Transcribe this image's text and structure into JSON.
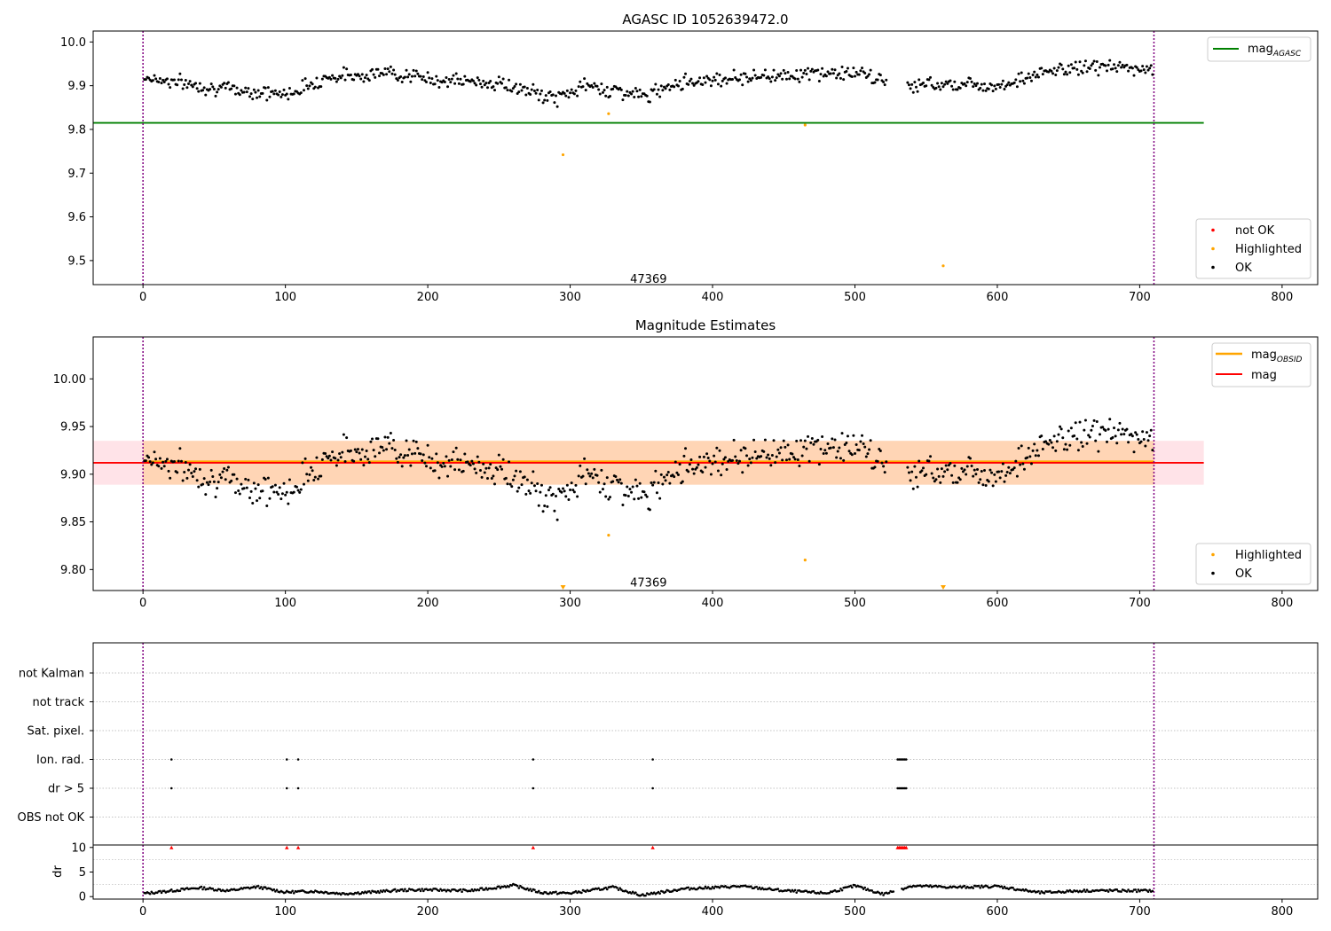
{
  "chart_data": [
    {
      "type": "scatter",
      "title": "AGASC ID 1052639472.0",
      "xlim": [
        -35,
        825
      ],
      "ylim": [
        9.445,
        10.025
      ],
      "xticks": [
        0,
        100,
        200,
        300,
        400,
        500,
        600,
        700,
        800
      ],
      "yticks": [
        9.5,
        9.6,
        9.7,
        9.8,
        9.9,
        10.0
      ],
      "ytick_labels": [
        "9.5",
        "9.6",
        "9.7",
        "9.8",
        "9.9",
        "10.0"
      ],
      "hlines": [
        {
          "name": "mag_AGASC",
          "y": 9.815,
          "x": [
            -35,
            745
          ],
          "color": "#008000"
        }
      ],
      "vlines": [
        0,
        710
      ],
      "annotation": {
        "text": "47369",
        "x": 355,
        "y": 9.455
      },
      "highlighted": [
        [
          295,
          9.742
        ],
        [
          327,
          9.836
        ],
        [
          465,
          9.81
        ],
        [
          562,
          9.488
        ]
      ],
      "ok_series": {
        "x_start": 1,
        "x_end": 709,
        "step": 1,
        "trend_knots": [
          [
            0,
            9.92
          ],
          [
            50,
            9.895
          ],
          [
            100,
            9.88
          ],
          [
            130,
            9.92
          ],
          [
            175,
            9.93
          ],
          [
            200,
            9.915
          ],
          [
            250,
            9.905
          ],
          [
            290,
            9.87
          ],
          [
            310,
            9.9
          ],
          [
            330,
            9.89
          ],
          [
            355,
            9.875
          ],
          [
            370,
            9.905
          ],
          [
            400,
            9.915
          ],
          [
            450,
            9.925
          ],
          [
            500,
            9.93
          ],
          [
            530,
            9.9
          ],
          [
            570,
            9.905
          ],
          [
            600,
            9.9
          ],
          [
            640,
            9.935
          ],
          [
            670,
            9.945
          ],
          [
            709,
            9.935
          ]
        ],
        "scatter": 0.015,
        "seed": 7
      },
      "legend": {
        "placement": "bottom-right",
        "entries": [
          {
            "label": "not OK",
            "color": "#ff0000"
          },
          {
            "label": "Highlighted",
            "color": "#ffa500"
          },
          {
            "label": "OK",
            "color": "#000000"
          }
        ]
      },
      "legend_top": {
        "placement": "top-right",
        "entries": [
          {
            "label": "mag",
            "sub": "AGASC",
            "color": "#008000"
          }
        ]
      }
    },
    {
      "type": "scatter",
      "title": "Magnitude Estimates",
      "xlim": [
        -35,
        825
      ],
      "ylim": [
        9.778,
        10.044
      ],
      "xticks": [
        0,
        100,
        200,
        300,
        400,
        500,
        600,
        700,
        800
      ],
      "yticks": [
        9.8,
        9.85,
        9.9,
        9.95,
        10.0
      ],
      "ytick_labels": [
        "9.80",
        "9.85",
        "9.90",
        "9.95",
        "10.00"
      ],
      "hlines": [
        {
          "name": "mag_OBSID",
          "y": 9.913,
          "x": [
            0,
            710
          ],
          "color": "#ffa500"
        },
        {
          "name": "mag",
          "y": 9.912,
          "x": [
            -35,
            745
          ],
          "color": "#ff0000"
        }
      ],
      "bands": [
        {
          "y": [
            9.889,
            9.935
          ],
          "x": [
            -35,
            745
          ],
          "color": "#ffc0cb",
          "opacity": 0.45
        },
        {
          "y": [
            9.889,
            9.935
          ],
          "x": [
            0,
            710
          ],
          "color": "#ffa500",
          "opacity": 0.22
        }
      ],
      "vlines": [
        0,
        710
      ],
      "annotation": {
        "text": "47369",
        "x": 355,
        "y": 9.785
      },
      "highlighted": [
        [
          327,
          9.836
        ],
        [
          465,
          9.81
        ]
      ],
      "highlighted_offscale": [
        295,
        562
      ],
      "ok_series_ref": 0,
      "legend": {
        "placement": "bottom-right",
        "entries": [
          {
            "label": "Highlighted",
            "color": "#ffa500"
          },
          {
            "label": "OK",
            "color": "#000000"
          }
        ]
      },
      "legend_top": {
        "placement": "top-right",
        "entries": [
          {
            "label": "mag",
            "sub": "OBSID",
            "color": "#ffa500"
          },
          {
            "label": "mag",
            "sub": "",
            "color": "#ff0000"
          }
        ]
      }
    },
    {
      "type": "scatter",
      "title": "",
      "xlim": [
        -35,
        825
      ],
      "categories": [
        "not Kalman",
        "not track",
        "Sat. pixel.",
        "Ion. rad.",
        "dr > 5",
        "OBS not OK"
      ],
      "flags": {
        "Ion. rad.": [
          20,
          101,
          109,
          274,
          358,
          530,
          531,
          532,
          533,
          534,
          535,
          536
        ],
        "dr > 5": [
          20,
          101,
          109,
          274,
          358,
          530,
          531,
          532,
          533,
          534,
          535,
          536
        ]
      },
      "vlines": [
        0,
        710
      ]
    },
    {
      "type": "line",
      "ylabel": "dr",
      "xlim": [
        -35,
        825
      ],
      "ylim": [
        -0.5,
        10.5
      ],
      "xticks": [
        0,
        100,
        200,
        300,
        400,
        500,
        600,
        700,
        800
      ],
      "yticks": [
        0,
        5,
        10
      ],
      "ytick_labels": [
        "0",
        "5",
        "10"
      ],
      "flag_markers_y": 10,
      "flag_markers_x": [
        20,
        101,
        109,
        274,
        358,
        530,
        531,
        532,
        533,
        534,
        535,
        536
      ],
      "dr_knots": [
        [
          0,
          0.6
        ],
        [
          20,
          1.2
        ],
        [
          40,
          1.8
        ],
        [
          60,
          1.2
        ],
        [
          80,
          2.0
        ],
        [
          100,
          0.9
        ],
        [
          120,
          1.1
        ],
        [
          140,
          0.6
        ],
        [
          160,
          0.9
        ],
        [
          180,
          1.3
        ],
        [
          200,
          1.4
        ],
        [
          230,
          1.2
        ],
        [
          260,
          2.3
        ],
        [
          280,
          0.8
        ],
        [
          300,
          0.7
        ],
        [
          330,
          1.9
        ],
        [
          350,
          0.3
        ],
        [
          380,
          1.6
        ],
        [
          420,
          2.1
        ],
        [
          450,
          1.2
        ],
        [
          480,
          0.7
        ],
        [
          500,
          2.2
        ],
        [
          520,
          0.5
        ],
        [
          540,
          2.2
        ],
        [
          570,
          1.9
        ],
        [
          600,
          2.1
        ],
        [
          630,
          0.8
        ],
        [
          660,
          1.2
        ],
        [
          690,
          1.2
        ],
        [
          709,
          1.2
        ]
      ],
      "dr_gaps": [
        [
          527,
          533
        ]
      ],
      "vlines": [
        0,
        710
      ]
    }
  ]
}
